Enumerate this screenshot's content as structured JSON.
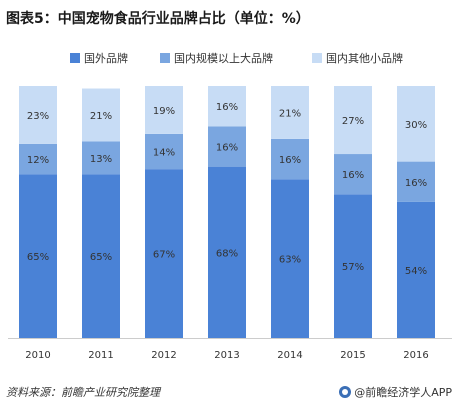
{
  "title": "图表5：中国宠物食品行业品牌占比（单位：%）",
  "colors": {
    "foreign": "#4a82d6",
    "domestic_large": "#7aa6e0",
    "domestic_small": "#c7dcf5",
    "label_text": "#333333",
    "axis": "#cccccc"
  },
  "chart_data": {
    "type": "bar",
    "stacked": true,
    "categories": [
      "2010",
      "2011",
      "2012",
      "2013",
      "2014",
      "2015",
      "2016"
    ],
    "series": [
      {
        "name": "国外品牌",
        "values": [
          65,
          65,
          67,
          68,
          63,
          57,
          54
        ],
        "labels": [
          "65%",
          "65%",
          "67%",
          "68%",
          "63%",
          "57%",
          "54%"
        ]
      },
      {
        "name": "国内规模以上大品牌",
        "values": [
          12,
          13,
          14,
          16,
          16,
          16,
          16
        ],
        "labels": [
          "12%",
          "13%",
          "14%",
          "16%",
          "16%",
          "16%",
          "16%"
        ]
      },
      {
        "name": "国内其他小品牌",
        "values": [
          23,
          21,
          19,
          16,
          21,
          27,
          30
        ],
        "labels": [
          "23%",
          "21%",
          "19%",
          "16%",
          "21%",
          "27%",
          "30%"
        ]
      }
    ],
    "ylim": [
      0,
      100
    ],
    "grid": false,
    "legend_position": "top"
  },
  "footer": {
    "source": "资料来源：前瞻产业研究院整理",
    "brand": "@前瞻经济学人APP"
  }
}
